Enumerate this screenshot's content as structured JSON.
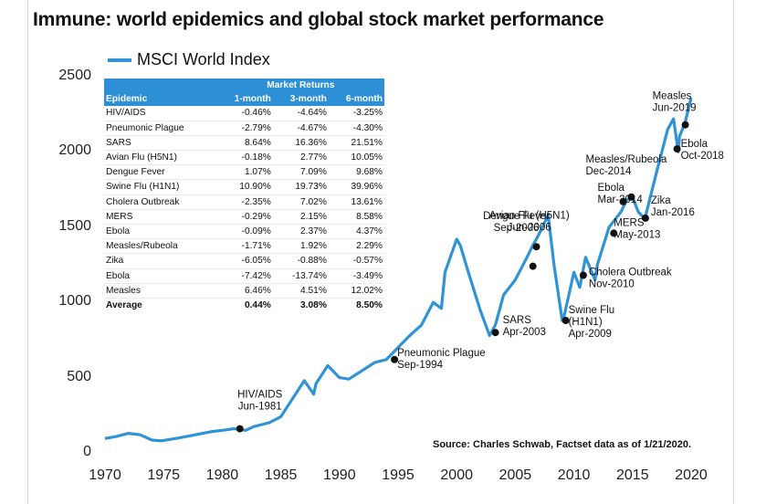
{
  "title": "Immune: world epidemics and global stock market performance",
  "source": "Source: Charles Schwab, Factset data as of 1/21/2020.",
  "colors": {
    "line": "#2f93d6",
    "table_header": "#2d8fd5",
    "marker": "#111111"
  },
  "chart_data": {
    "type": "line",
    "title": "Immune: world epidemics and global stock market performance",
    "xlabel": "",
    "ylabel": "",
    "xlim": [
      1970,
      2020.5
    ],
    "ylim": [
      0,
      2500
    ],
    "x_ticks": [
      "1970",
      "1975",
      "1980",
      "1985",
      "1990",
      "1995",
      "2000",
      "2005",
      "2010",
      "2015",
      "2020"
    ],
    "y_ticks": [
      "0",
      "500",
      "1000",
      "1500",
      "2000",
      "2500"
    ],
    "legend": "top-left",
    "grid": false,
    "series": [
      {
        "name": "MSCI World Index",
        "x": [
          1970,
          1971,
          1972,
          1973,
          1974,
          1974.8,
          1976,
          1977,
          1978,
          1979,
          1980,
          1981,
          1982,
          1982.7,
          1984,
          1985,
          1986,
          1987,
          1987.8,
          1988,
          1989,
          1990,
          1990.8,
          1992,
          1993,
          1994,
          1995,
          1996,
          1997,
          1998,
          1998.7,
          1999,
          2000,
          2000.3,
          2001,
          2002,
          2002.8,
          2003.3,
          2004,
          2005,
          2006,
          2006.5,
          2007,
          2007.8,
          2008.3,
          2009,
          2009.2,
          2010,
          2010.5,
          2011,
          2011.8,
          2012,
          2013,
          2014,
          2014.5,
          2015,
          2015.5,
          2016,
          2016.1,
          2017,
          2018,
          2018.5,
          2018.9,
          2019,
          2019.5,
          2020
        ],
        "values": [
          95,
          110,
          130,
          120,
          85,
          80,
          95,
          110,
          125,
          140,
          150,
          160,
          150,
          175,
          200,
          240,
          360,
          480,
          390,
          460,
          580,
          500,
          490,
          550,
          600,
          620,
          700,
          780,
          850,
          1000,
          960,
          1200,
          1420,
          1380,
          1200,
          950,
          780,
          850,
          1050,
          1150,
          1300,
          1380,
          1450,
          1580,
          1250,
          880,
          920,
          1200,
          1100,
          1300,
          1150,
          1250,
          1500,
          1600,
          1680,
          1700,
          1600,
          1560,
          1570,
          1850,
          2150,
          2220,
          2000,
          2100,
          2200,
          2360
        ]
      }
    ],
    "events": [
      {
        "label_lines": [
          "HIV/AIDS",
          "Jun-1981"
        ],
        "x": 1981.5,
        "y": 160
      },
      {
        "label_lines": [
          "Pneumonic Plague",
          "Sep-1994"
        ],
        "x": 1994.7,
        "y": 620
      },
      {
        "label_lines": [
          "SARS",
          "Apr-2003"
        ],
        "x": 2003.3,
        "y": 800
      },
      {
        "label_lines": [
          "Avian Flu (H5N1)",
          "Jun-2006"
        ],
        "x": 2006.5,
        "y": 1240
      },
      {
        "label_lines": [
          "Dengue Fever",
          "Sep-2006"
        ],
        "x": 2006.8,
        "y": 1370
      },
      {
        "label_lines": [
          "Swine Flu",
          "(H1N1)",
          "Apr-2009"
        ],
        "x": 2009.3,
        "y": 880
      },
      {
        "label_lines": [
          "Cholera Outbreak",
          "Nov-2010"
        ],
        "x": 2010.8,
        "y": 1180
      },
      {
        "label_lines": [
          "MERS",
          "May-2013"
        ],
        "x": 2013.4,
        "y": 1460
      },
      {
        "label_lines": [
          "Ebola",
          "Mar-2014"
        ],
        "x": 2014.2,
        "y": 1670
      },
      {
        "label_lines": [
          "Measles/Rubeola",
          "Dec-2014"
        ],
        "x": 2014.9,
        "y": 1700
      },
      {
        "label_lines": [
          "Zika",
          "Jan-2016"
        ],
        "x": 2016.1,
        "y": 1560
      },
      {
        "label_lines": [
          "Measles",
          "Jun-2019"
        ],
        "x": 2019.5,
        "y": 2180
      },
      {
        "label_lines": [
          "Ebola",
          "Oct-2018"
        ],
        "x": 2018.8,
        "y": 2020
      }
    ]
  },
  "table": {
    "group_header": "Market Returns",
    "columns": [
      "Epidemic",
      "1-month",
      "3-month",
      "6-month"
    ],
    "rows": [
      [
        "HIV/AIDS",
        "-0.46%",
        "-4.64%",
        "-3.25%"
      ],
      [
        "Pneumonic Plague",
        "-2.79%",
        "-4.67%",
        "-4.30%"
      ],
      [
        "SARS",
        "8.64%",
        "16.36%",
        "21.51%"
      ],
      [
        "Avian Flu (H5N1)",
        "-0.18%",
        "2.77%",
        "10.05%"
      ],
      [
        "Dengue Fever",
        "1.07%",
        "7.09%",
        "9.68%"
      ],
      [
        "Swine Flu (H1N1)",
        "10.90%",
        "19.73%",
        "39.96%"
      ],
      [
        "Cholera Outbreak",
        "-2.35%",
        "7.02%",
        "13.61%"
      ],
      [
        "MERS",
        "-0.29%",
        "2.15%",
        "8.58%"
      ],
      [
        "Ebola",
        "-0.09%",
        "2.37%",
        "4.37%"
      ],
      [
        "Measles/Rubeola",
        "-1.71%",
        "1.92%",
        "2.29%"
      ],
      [
        "Zika",
        "-6.05%",
        "-0.88%",
        "-0.57%"
      ],
      [
        "Ebola",
        "-7.42%",
        "-13.74%",
        "-3.49%"
      ],
      [
        "Measles",
        "6.46%",
        "4.51%",
        "12.02%"
      ]
    ],
    "average": [
      "Average",
      "0.44%",
      "3.08%",
      "8.50%"
    ]
  }
}
